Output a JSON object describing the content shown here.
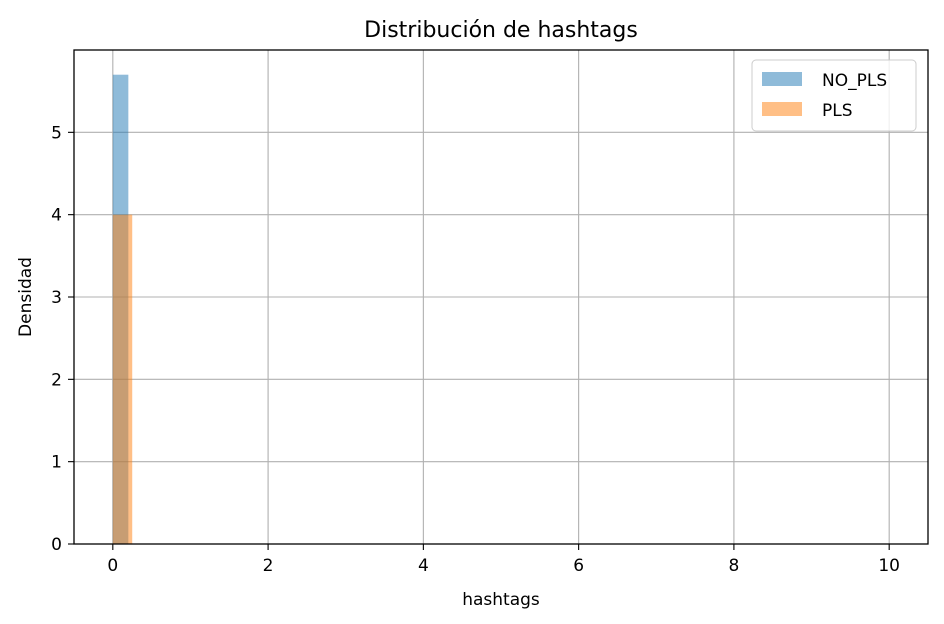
{
  "chart_data": {
    "type": "bar",
    "title": "Distribución de hashtags",
    "xlabel": "hashtags",
    "ylabel": "Densidad",
    "xlim": [
      -0.5,
      10.5
    ],
    "ylim": [
      0,
      6
    ],
    "xticks": [
      0,
      2,
      4,
      6,
      8,
      10
    ],
    "yticks": [
      0,
      1,
      2,
      3,
      4,
      5
    ],
    "grid": true,
    "legend_placement": "top-right",
    "series": [
      {
        "name": "NO_PLS",
        "color": "#1f77b4",
        "opacity": 0.5,
        "bins": [
          {
            "x0": 0.0,
            "x1": 0.2,
            "value": 5.7
          }
        ]
      },
      {
        "name": "PLS",
        "color": "#ff7f0e",
        "opacity": 0.5,
        "bins": [
          {
            "x0": 0.0,
            "x1": 0.25,
            "value": 4.0
          }
        ]
      }
    ]
  }
}
